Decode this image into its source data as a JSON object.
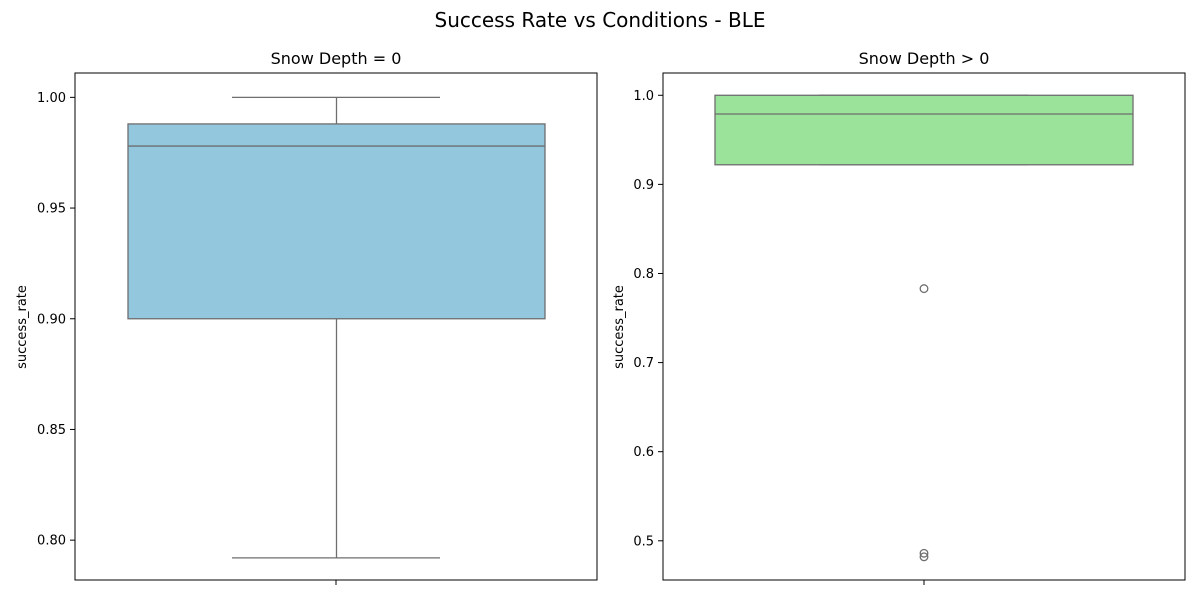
{
  "figure": {
    "suptitle": "Success Rate vs Conditions - BLE"
  },
  "chart_data": [
    {
      "type": "box",
      "title": "Snow Depth = 0",
      "ylabel": "success_rate",
      "xlabel": "",
      "ylim": [
        0.782,
        1.011
      ],
      "yticks": [
        0.8,
        0.85,
        0.9,
        0.95,
        1.0
      ],
      "ytick_labels": [
        "0.80",
        "0.85",
        "0.90",
        "0.95",
        "1.00"
      ],
      "box": {
        "whisker_low": 0.792,
        "q1": 0.9,
        "median": 0.978,
        "q3": 0.988,
        "whisker_high": 1.0,
        "outliers": []
      },
      "color": "#92c7de",
      "edge_color": "#6e6e6e",
      "grid": false
    },
    {
      "type": "box",
      "title": "Snow Depth > 0",
      "ylabel": "success_rate",
      "xlabel": "",
      "ylim": [
        0.456,
        1.025
      ],
      "yticks": [
        0.5,
        0.6,
        0.7,
        0.8,
        0.9,
        1.0
      ],
      "ytick_labels": [
        "0.5",
        "0.6",
        "0.7",
        "0.8",
        "0.9",
        "1.0"
      ],
      "box": {
        "whisker_low": 0.922,
        "q1": 0.922,
        "median": 0.979,
        "q3": 1.0,
        "whisker_high": 1.0,
        "outliers": [
          0.783,
          0.486,
          0.482
        ]
      },
      "color": "#9be39b",
      "edge_color": "#6e6e6e",
      "grid": false
    }
  ]
}
